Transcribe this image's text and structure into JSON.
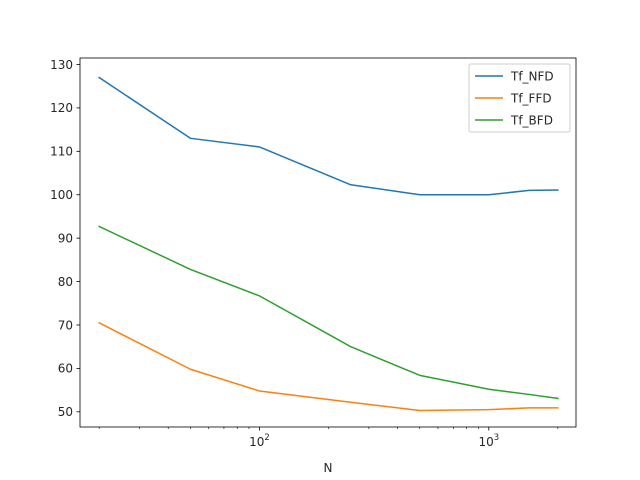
{
  "chart_data": {
    "type": "line",
    "title": "",
    "xlabel": "N",
    "ylabel": "",
    "xscale": "log",
    "xlim": [
      16.5,
      2400
    ],
    "ylim": [
      46.5,
      131.5
    ],
    "grid": false,
    "legend_position": "top-right",
    "x_ticks": [
      100,
      1000
    ],
    "x_tick_labels": [
      {
        "base": "10",
        "exp": "2"
      },
      {
        "base": "10",
        "exp": "3"
      }
    ],
    "y_ticks": [
      50,
      60,
      70,
      80,
      90,
      100,
      110,
      120,
      130
    ],
    "y_tick_labels": [
      "50",
      "60",
      "70",
      "80",
      "90",
      "100",
      "110",
      "120",
      "130"
    ],
    "x": [
      20,
      50,
      100,
      250,
      500,
      1000,
      1500,
      2000
    ],
    "series": [
      {
        "name": "Tf_NFD",
        "color": "#1f77b4",
        "values": [
          127.0,
          113.0,
          111.0,
          102.3,
          100.0,
          100.0,
          101.0,
          101.1
        ]
      },
      {
        "name": "Tf_FFD",
        "color": "#ff7f0e",
        "values": [
          70.5,
          59.8,
          54.8,
          52.2,
          50.3,
          50.5,
          50.9,
          50.9
        ]
      },
      {
        "name": "Tf_BFD",
        "color": "#2ca02c",
        "values": [
          92.7,
          82.8,
          76.7,
          65.0,
          58.4,
          55.2,
          54.0,
          53.1
        ]
      }
    ]
  }
}
